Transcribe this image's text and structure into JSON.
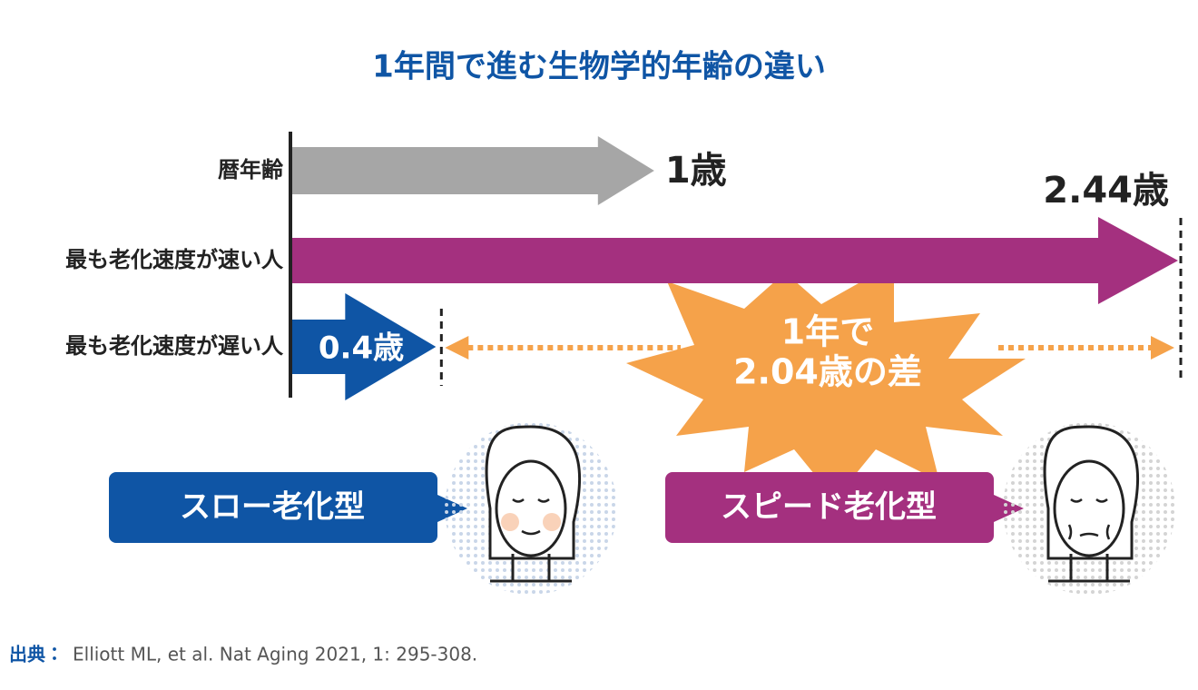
{
  "chart_data": {
    "type": "arrow-bar",
    "title": "1年間で進む生物学的年齢の違い",
    "categories": [
      "暦年齢",
      "最も老化速度が速い人",
      "最も老化速度が遅い人"
    ],
    "values": [
      1,
      2.44,
      0.4
    ],
    "value_labels": [
      "1歳",
      "2.44歳",
      "0.4歳"
    ],
    "colors": [
      "#a6a6a6",
      "#a4307f",
      "#0f55a5"
    ],
    "xlim": [
      0,
      2.44
    ],
    "annotation": [
      "1年で",
      "2.04歳の差"
    ],
    "annotation_color": "#f5a24a",
    "types": [
      "スロー老化型",
      "スピード老化型"
    ],
    "source_label": "出典：",
    "source": "Elliott ML, et al. Nat Aging 2021, 1: 295-308."
  }
}
